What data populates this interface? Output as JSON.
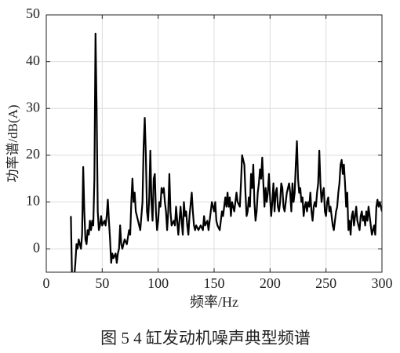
{
  "chart_data": {
    "type": "line",
    "caption": "图 5 4 缸发动机噪声典型频谱",
    "x_label": "频率/Hz",
    "y_label": "功率谱/dB(A)",
    "color": "#000000",
    "grid": true,
    "xlim": [
      0,
      300
    ],
    "xticks": [
      0,
      50,
      100,
      150,
      200,
      250,
      300
    ],
    "ylim": [
      -5,
      50
    ],
    "yticks": [
      0,
      10,
      20,
      30,
      40,
      50
    ],
    "x": [
      22,
      23,
      25,
      26,
      27,
      28,
      29,
      30,
      31,
      32,
      33,
      34,
      35,
      36,
      37,
      38,
      39,
      40,
      41,
      42,
      43,
      44,
      45,
      46,
      47,
      48,
      49,
      50,
      52,
      53,
      54,
      55,
      56,
      57,
      58,
      59,
      60,
      62,
      63,
      64,
      65,
      66,
      67,
      68,
      70,
      72,
      74,
      75,
      76,
      77,
      78,
      79,
      80,
      82,
      84,
      85,
      86,
      87,
      88,
      89,
      90,
      91,
      92,
      93,
      94,
      95,
      96,
      97,
      98,
      99,
      100,
      101,
      102,
      103,
      104,
      105,
      106,
      107,
      108,
      109,
      110,
      111,
      112,
      114,
      115,
      116,
      117,
      118,
      120,
      121,
      122,
      123,
      124,
      125,
      126,
      127,
      128,
      130,
      131,
      132,
      133,
      134,
      136,
      138,
      140,
      141,
      142,
      144,
      145,
      147,
      148,
      149,
      150,
      151,
      152,
      153,
      155,
      157,
      158,
      160,
      161,
      162,
      163,
      164,
      165,
      166,
      168,
      170,
      171,
      173,
      174,
      175,
      176,
      177,
      178,
      179,
      180,
      181,
      182,
      183,
      184,
      185,
      186,
      187,
      188,
      189,
      190,
      191,
      192,
      193,
      194,
      195,
      196,
      197,
      198,
      199,
      200,
      201,
      202,
      203,
      204,
      205,
      206,
      207,
      208,
      209,
      210,
      211,
      212,
      213,
      214,
      215,
      216,
      217,
      218,
      219,
      220,
      221,
      222,
      223,
      224,
      225,
      226,
      227,
      228,
      229,
      230,
      231,
      232,
      233,
      234,
      235,
      236,
      237,
      238,
      239,
      240,
      241,
      242,
      243,
      244,
      245,
      246,
      247,
      248,
      249,
      250,
      251,
      252,
      253,
      254,
      255,
      256,
      257,
      258,
      259,
      260,
      261,
      262,
      263,
      264,
      265,
      266,
      267,
      268,
      269,
      270,
      271,
      272,
      273,
      274,
      275,
      276,
      277,
      278,
      279,
      280,
      281,
      282,
      283,
      284,
      285,
      286,
      287,
      288,
      289,
      290,
      291,
      292,
      293,
      294,
      295,
      296,
      297,
      298,
      299,
      300
    ],
    "values": [
      7,
      -6,
      -6,
      -3,
      1,
      0,
      2,
      1,
      0,
      3,
      17.5,
      8,
      2,
      1,
      4,
      3,
      6,
      4,
      6,
      5,
      15,
      46,
      30,
      8,
      4,
      5,
      7,
      5,
      6,
      5,
      7,
      10.5,
      6,
      2,
      -3,
      -1,
      -2,
      -1,
      -3,
      -1,
      0,
      5,
      1,
      0,
      2,
      1,
      4,
      3,
      10,
      15,
      10,
      12,
      8,
      6,
      4,
      7,
      10,
      22,
      28,
      20,
      8,
      6,
      11,
      21,
      10,
      6,
      15,
      16,
      8,
      4,
      6,
      10,
      9,
      13,
      12,
      13,
      10,
      8,
      4,
      8,
      16,
      8,
      5,
      6,
      5,
      9,
      6,
      3,
      9,
      6,
      3,
      10,
      7,
      8,
      5,
      3,
      7,
      12,
      8,
      5,
      4,
      5,
      4,
      5,
      4,
      7,
      5,
      6,
      4,
      8,
      10,
      9,
      8,
      10,
      6,
      5,
      4,
      8,
      7,
      11,
      9,
      12,
      9,
      11,
      7,
      10,
      8,
      12,
      10,
      9,
      14,
      20,
      19,
      18,
      12,
      7,
      8,
      11,
      9,
      16,
      13,
      18,
      10,
      6,
      8,
      12,
      14,
      17,
      15,
      19.5,
      14,
      9,
      13,
      10,
      12,
      16,
      11,
      7,
      10,
      14,
      8,
      12,
      13,
      9,
      8,
      10,
      14,
      13,
      9,
      8,
      10,
      12,
      13,
      14,
      12,
      8,
      14,
      10,
      12,
      18,
      23,
      15,
      12,
      13,
      10,
      11,
      7,
      9,
      10,
      8,
      10,
      9,
      12,
      8,
      6,
      9,
      10,
      9,
      12,
      14,
      21,
      14,
      10,
      12,
      13,
      8,
      7,
      10,
      11,
      8,
      9,
      7,
      5,
      4,
      6,
      8,
      9,
      12,
      14,
      18,
      19,
      16,
      18,
      14,
      9,
      12,
      4,
      6,
      3,
      7,
      8,
      5,
      7,
      9,
      6,
      5,
      4,
      7,
      8,
      6,
      7,
      5,
      8,
      6,
      9,
      7,
      5,
      3,
      4,
      5,
      3,
      9,
      10.5,
      9,
      10,
      9,
      8
    ]
  }
}
